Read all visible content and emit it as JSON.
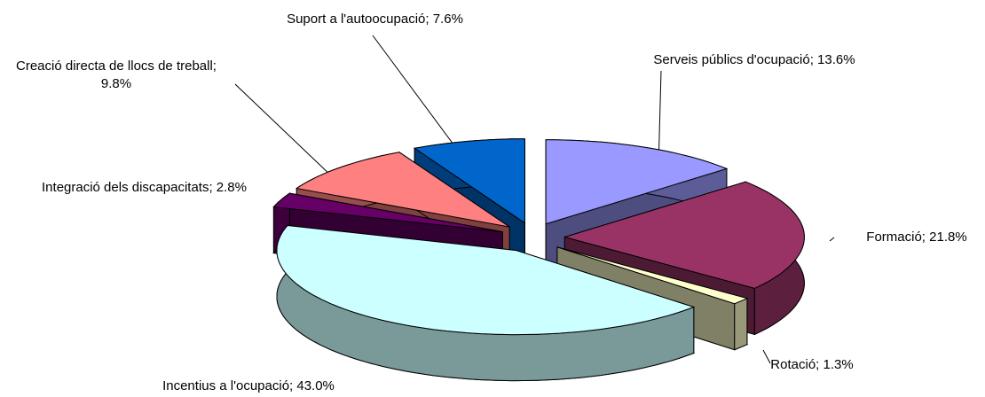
{
  "chart_data": {
    "type": "pie3d",
    "categories": [
      "Serveis públics d'ocupació; 13.6%",
      "Formació; 21.8%",
      "Rotació; 1.3%",
      "Incentius a l'ocupació; 43.0%",
      "Integració dels discapacitats; 2.8%",
      "Creació directa de llocs de treball; 9.8%",
      "Suport a l'autoocupació; 7.6%"
    ],
    "values": [
      13.6,
      21.8,
      1.3,
      43.0,
      2.8,
      9.8,
      7.6
    ],
    "colors": [
      "#9999ff",
      "#993366",
      "#ffffcc",
      "#ccffff",
      "#660066",
      "#ff8080",
      "#0066cc"
    ]
  }
}
